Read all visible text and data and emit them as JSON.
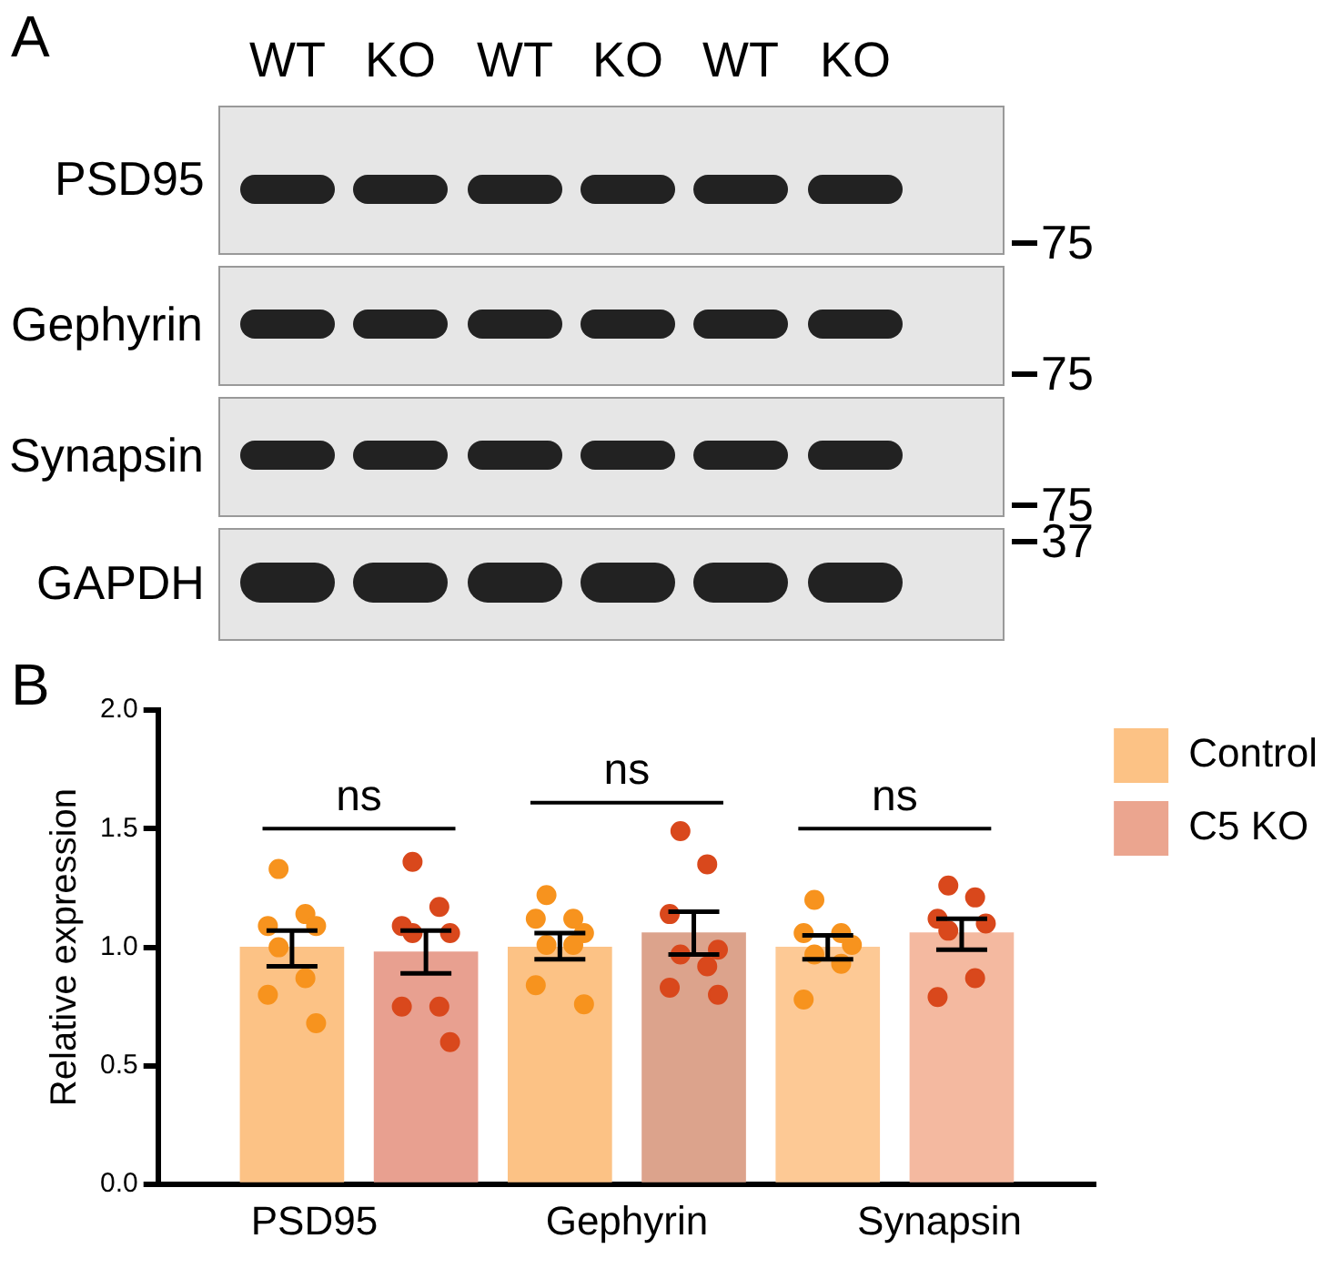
{
  "chart_data": [
    {
      "type": "other",
      "annotations": [
        "A",
        "WT",
        "KO",
        "WT",
        "KO",
        "WT",
        "KO",
        "PSD95",
        "Gephyrin",
        "Synapsin",
        "GAPDH",
        "75",
        "75",
        "75",
        "37"
      ]
    },
    {
      "type": "bar",
      "ylabel": "Relative expression",
      "categories": [
        "PSD95",
        "Gephyrin",
        "Synapsin"
      ],
      "series": [
        {
          "name": "Control",
          "color": "#fcc285",
          "colors": [
            "#fcc285",
            "#fcc285",
            "#fdc995"
          ],
          "values": [
            1.0,
            1.0,
            1.0
          ],
          "errors": [
            [
              0.92,
              1.07
            ],
            [
              0.95,
              1.06
            ],
            [
              0.95,
              1.05
            ]
          ]
        },
        {
          "name": "C5 KO",
          "color": "#eba58f",
          "colors": [
            "#e8a090",
            "#dca38c",
            "#f4b9a0"
          ],
          "values": [
            0.98,
            1.06,
            1.06
          ],
          "errors": [
            [
              0.89,
              1.07
            ],
            [
              0.97,
              1.15
            ],
            [
              0.99,
              1.12
            ]
          ]
        },
        {
          "type": "scatter",
          "color": "#f7931e",
          "x": [
            "PSD95",
            "PSD95",
            "PSD95",
            "PSD95",
            "PSD95",
            "PSD95",
            "PSD95",
            "PSD95",
            "Gephyrin",
            "Gephyrin",
            "Gephyrin",
            "Gephyrin",
            "Gephyrin",
            "Gephyrin",
            "Gephyrin",
            "Gephyrin",
            "Synapsin",
            "Synapsin",
            "Synapsin",
            "Synapsin",
            "Synapsin",
            "Synapsin",
            "Synapsin"
          ],
          "values": [
            1.33,
            1.14,
            1.09,
            1.09,
            1.0,
            0.87,
            0.8,
            0.68,
            1.22,
            1.12,
            1.12,
            1.06,
            1.01,
            1.01,
            0.84,
            0.76,
            1.2,
            1.06,
            1.06,
            1.01,
            0.97,
            0.93,
            0.78
          ]
        },
        {
          "type": "scatter",
          "color": "#d9481c",
          "x": [
            "PSD95",
            "PSD95",
            "PSD95",
            "PSD95",
            "PSD95",
            "PSD95",
            "PSD95",
            "PSD95",
            "Gephyrin",
            "Gephyrin",
            "Gephyrin",
            "Gephyrin",
            "Gephyrin",
            "Gephyrin",
            "Gephyrin",
            "Gephyrin",
            "Synapsin",
            "Synapsin",
            "Synapsin",
            "Synapsin",
            "Synapsin",
            "Synapsin",
            "Synapsin"
          ],
          "values": [
            1.36,
            1.17,
            1.09,
            1.06,
            1.06,
            0.75,
            0.75,
            0.6,
            1.49,
            1.35,
            1.14,
            0.99,
            0.97,
            0.92,
            0.83,
            0.8,
            1.26,
            1.21,
            1.12,
            1.1,
            1.07,
            0.87,
            0.79
          ]
        }
      ],
      "ylim": [
        0,
        2
      ],
      "yticks": [
        {
          "value": 0,
          "label": "0.0"
        },
        {
          "value": 0.5,
          "label": "0.5"
        },
        {
          "value": 1,
          "label": "1.0"
        },
        {
          "value": 1.5,
          "label": "1.5"
        },
        {
          "value": 2,
          "label": "2.0"
        }
      ],
      "grid": false,
      "legend": "top right",
      "marker": "circle",
      "annotations": [
        "B",
        "ns",
        "ns",
        "ns"
      ]
    }
  ]
}
